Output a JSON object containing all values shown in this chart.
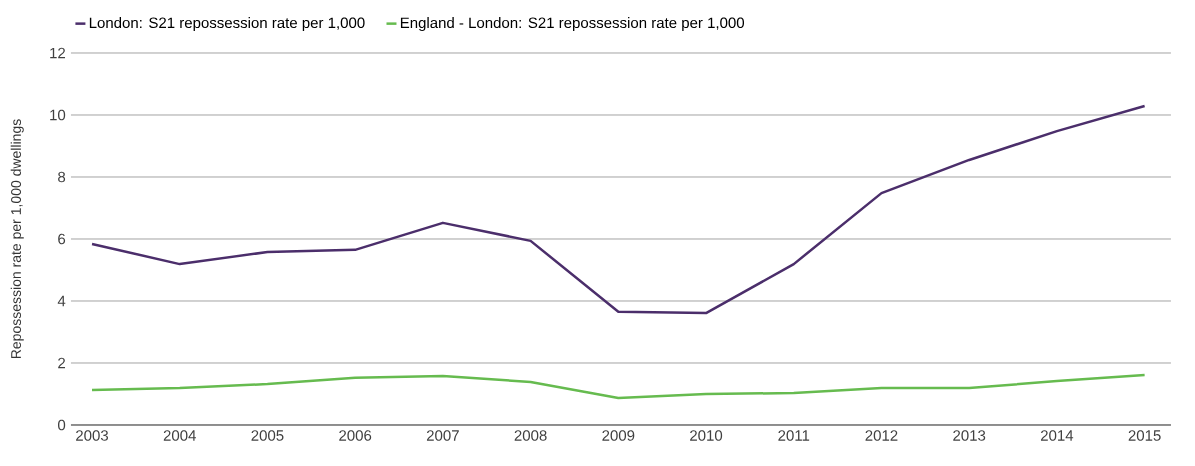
{
  "chart_data": {
    "type": "line",
    "ylabel": "Repossession rate per 1,000 dwellings",
    "categories": [
      "2003",
      "2004",
      "2005",
      "2006",
      "2007",
      "2008",
      "2009",
      "2010",
      "2011",
      "2012",
      "2013",
      "2014",
      "2015"
    ],
    "series": [
      {
        "name": "London: S21 repossession rate per 1,000",
        "color": "#4b2e6b",
        "values": [
          5.84,
          5.19,
          5.58,
          5.65,
          6.52,
          5.94,
          3.65,
          3.61,
          5.19,
          7.48,
          8.55,
          9.48,
          10.29
        ]
      },
      {
        "name": "England - London: S21 repossession rate per 1,000",
        "color": "#66bb4f",
        "values": [
          1.13,
          1.19,
          1.32,
          1.52,
          1.58,
          1.39,
          0.87,
          1.0,
          1.03,
          1.19,
          1.19,
          1.42,
          1.61
        ]
      }
    ],
    "ylim": [
      0,
      12
    ],
    "yticks": [
      0,
      2,
      4,
      6,
      8,
      10,
      12
    ],
    "grid": "y",
    "legend": "top left"
  }
}
